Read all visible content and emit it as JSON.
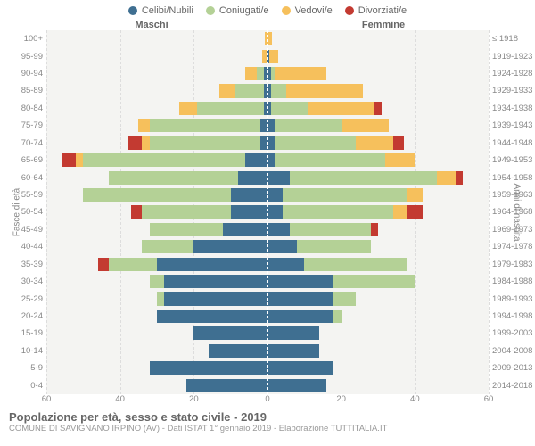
{
  "legend": [
    {
      "label": "Celibi/Nubili",
      "color": "#3f6f91"
    },
    {
      "label": "Coniugati/e",
      "color": "#b4d196"
    },
    {
      "label": "Vedovi/e",
      "color": "#f6c05c"
    },
    {
      "label": "Divorziati/e",
      "color": "#c33a31"
    }
  ],
  "gender_left": "Maschi",
  "gender_right": "Femmine",
  "ylabel_left": "Fasce di età",
  "ylabel_right": "Anni di nascita",
  "title": "Popolazione per età, sesso e stato civile - 2019",
  "subtitle": "COMUNE DI SAVIGNANO IRPINO (AV) - Dati ISTAT 1° gennaio 2019 - Elaborazione TUTTITALIA.IT",
  "xmax": 60,
  "xticks": [
    60,
    40,
    20,
    0,
    20,
    40,
    60
  ],
  "background_color": "#f4f4f2",
  "grid_color": "#dddddd",
  "rows": [
    {
      "age": "100+",
      "birth": "≤ 1918",
      "m": {
        "cel": 0,
        "con": 0,
        "ved": 0.8,
        "div": 0
      },
      "f": {
        "cel": 0,
        "con": 0,
        "ved": 1.2,
        "div": 0
      }
    },
    {
      "age": "95-99",
      "birth": "1919-1923",
      "m": {
        "cel": 0,
        "con": 0,
        "ved": 1.5,
        "div": 0
      },
      "f": {
        "cel": 0.5,
        "con": 0,
        "ved": 2.5,
        "div": 0
      }
    },
    {
      "age": "90-94",
      "birth": "1924-1928",
      "m": {
        "cel": 1,
        "con": 2,
        "ved": 3,
        "div": 0
      },
      "f": {
        "cel": 1,
        "con": 1,
        "ved": 14,
        "div": 0
      }
    },
    {
      "age": "85-89",
      "birth": "1929-1933",
      "m": {
        "cel": 1,
        "con": 8,
        "ved": 4,
        "div": 0
      },
      "f": {
        "cel": 1,
        "con": 4,
        "ved": 21,
        "div": 0
      }
    },
    {
      "age": "80-84",
      "birth": "1934-1938",
      "m": {
        "cel": 1,
        "con": 18,
        "ved": 5,
        "div": 0
      },
      "f": {
        "cel": 1,
        "con": 10,
        "ved": 18,
        "div": 2
      }
    },
    {
      "age": "75-79",
      "birth": "1939-1943",
      "m": {
        "cel": 2,
        "con": 30,
        "ved": 3,
        "div": 0
      },
      "f": {
        "cel": 2,
        "con": 18,
        "ved": 13,
        "div": 0
      }
    },
    {
      "age": "70-74",
      "birth": "1944-1948",
      "m": {
        "cel": 2,
        "con": 30,
        "ved": 2,
        "div": 4
      },
      "f": {
        "cel": 2,
        "con": 22,
        "ved": 10,
        "div": 3
      }
    },
    {
      "age": "65-69",
      "birth": "1949-1953",
      "m": {
        "cel": 6,
        "con": 44,
        "ved": 2,
        "div": 4
      },
      "f": {
        "cel": 2,
        "con": 30,
        "ved": 8,
        "div": 0
      }
    },
    {
      "age": "60-64",
      "birth": "1954-1958",
      "m": {
        "cel": 8,
        "con": 35,
        "ved": 0,
        "div": 0
      },
      "f": {
        "cel": 6,
        "con": 40,
        "ved": 5,
        "div": 2
      }
    },
    {
      "age": "55-59",
      "birth": "1959-1963",
      "m": {
        "cel": 10,
        "con": 40,
        "ved": 0,
        "div": 0
      },
      "f": {
        "cel": 4,
        "con": 34,
        "ved": 4,
        "div": 0
      }
    },
    {
      "age": "50-54",
      "birth": "1964-1968",
      "m": {
        "cel": 10,
        "con": 24,
        "ved": 0,
        "div": 3
      },
      "f": {
        "cel": 4,
        "con": 30,
        "ved": 4,
        "div": 4
      }
    },
    {
      "age": "45-49",
      "birth": "1969-1973",
      "m": {
        "cel": 12,
        "con": 20,
        "ved": 0,
        "div": 0
      },
      "f": {
        "cel": 6,
        "con": 22,
        "ved": 0,
        "div": 2
      }
    },
    {
      "age": "40-44",
      "birth": "1974-1978",
      "m": {
        "cel": 20,
        "con": 14,
        "ved": 0,
        "div": 0
      },
      "f": {
        "cel": 8,
        "con": 20,
        "ved": 0,
        "div": 0
      }
    },
    {
      "age": "35-39",
      "birth": "1979-1983",
      "m": {
        "cel": 30,
        "con": 13,
        "ved": 0,
        "div": 3
      },
      "f": {
        "cel": 10,
        "con": 28,
        "ved": 0,
        "div": 0
      }
    },
    {
      "age": "30-34",
      "birth": "1984-1988",
      "m": {
        "cel": 28,
        "con": 4,
        "ved": 0,
        "div": 0
      },
      "f": {
        "cel": 18,
        "con": 22,
        "ved": 0,
        "div": 0
      }
    },
    {
      "age": "25-29",
      "birth": "1989-1993",
      "m": {
        "cel": 28,
        "con": 2,
        "ved": 0,
        "div": 0
      },
      "f": {
        "cel": 18,
        "con": 6,
        "ved": 0,
        "div": 0
      }
    },
    {
      "age": "20-24",
      "birth": "1994-1998",
      "m": {
        "cel": 30,
        "con": 0,
        "ved": 0,
        "div": 0
      },
      "f": {
        "cel": 18,
        "con": 2,
        "ved": 0,
        "div": 0
      }
    },
    {
      "age": "15-19",
      "birth": "1999-2003",
      "m": {
        "cel": 20,
        "con": 0,
        "ved": 0,
        "div": 0
      },
      "f": {
        "cel": 14,
        "con": 0,
        "ved": 0,
        "div": 0
      }
    },
    {
      "age": "10-14",
      "birth": "2004-2008",
      "m": {
        "cel": 16,
        "con": 0,
        "ved": 0,
        "div": 0
      },
      "f": {
        "cel": 14,
        "con": 0,
        "ved": 0,
        "div": 0
      }
    },
    {
      "age": "5-9",
      "birth": "2009-2013",
      "m": {
        "cel": 32,
        "con": 0,
        "ved": 0,
        "div": 0
      },
      "f": {
        "cel": 18,
        "con": 0,
        "ved": 0,
        "div": 0
      }
    },
    {
      "age": "0-4",
      "birth": "2014-2018",
      "m": {
        "cel": 22,
        "con": 0,
        "ved": 0,
        "div": 0
      },
      "f": {
        "cel": 16,
        "con": 0,
        "ved": 0,
        "div": 0
      }
    }
  ]
}
